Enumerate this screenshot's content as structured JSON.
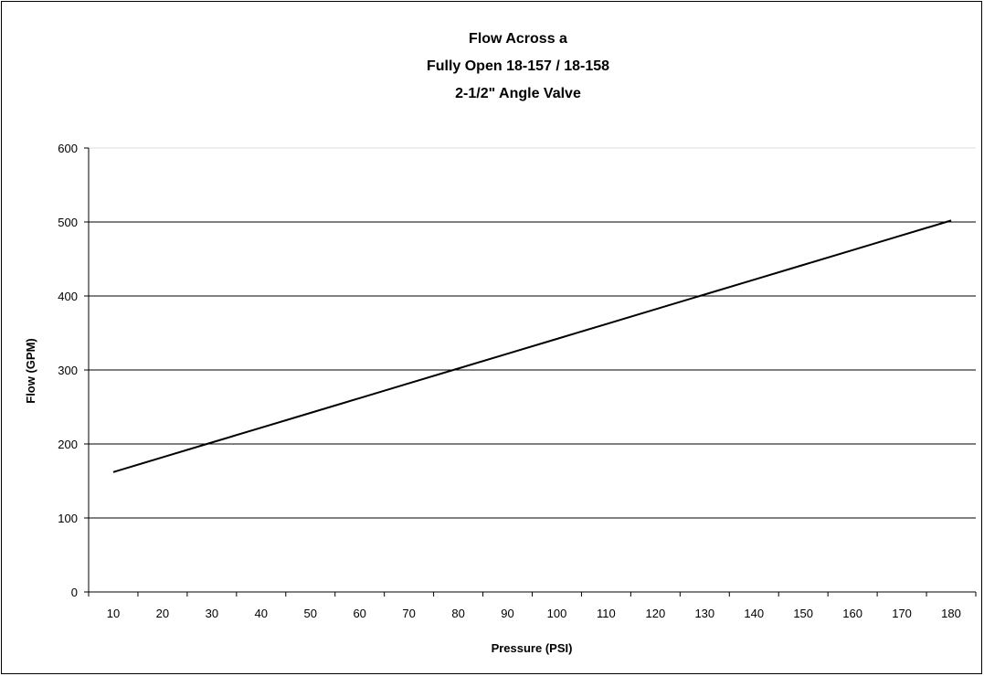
{
  "chart_data": {
    "type": "line",
    "title_lines": [
      "Flow Across a",
      "Fully Open 18-157 / 18-158",
      "2-1/2\" Angle Valve"
    ],
    "xlabel": "Pressure (PSI)",
    "ylabel": "Flow (GPM)",
    "categories": [
      "10",
      "20",
      "30",
      "40",
      "50",
      "60",
      "70",
      "80",
      "90",
      "100",
      "110",
      "120",
      "130",
      "140",
      "150",
      "160",
      "170",
      "180"
    ],
    "yticks": [
      "0",
      "100",
      "200",
      "300",
      "400",
      "500",
      "600"
    ],
    "ylim": [
      0,
      600
    ],
    "grid": "horizontal",
    "legend": "none",
    "line_color": "#000000",
    "series": [
      {
        "values": [
          162,
          182,
          202,
          222,
          242,
          262,
          282,
          302,
          322,
          342,
          362,
          382,
          402,
          422,
          442,
          462,
          482,
          502
        ]
      }
    ]
  }
}
